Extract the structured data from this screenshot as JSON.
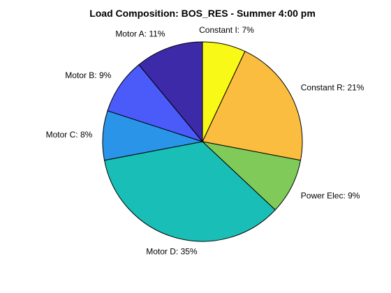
{
  "chart_data": {
    "type": "pie",
    "title": "Load Composition: BOS_RES - Summer 4:00 pm",
    "slices": [
      {
        "name": "Constant I",
        "value": 7,
        "label": "Constant I: 7%",
        "color": "#f9f918"
      },
      {
        "name": "Constant R",
        "value": 21,
        "label": "Constant R: 21%",
        "color": "#fbbd3f"
      },
      {
        "name": "Power Elec",
        "value": 9,
        "label": "Power Elec: 9%",
        "color": "#7fca59"
      },
      {
        "name": "Motor D",
        "value": 35,
        "label": "Motor D: 35%",
        "color": "#19bfb6"
      },
      {
        "name": "Motor C",
        "value": 8,
        "label": "Motor C: 8%",
        "color": "#2a95e8"
      },
      {
        "name": "Motor B",
        "value": 9,
        "label": "Motor B: 9%",
        "color": "#4a5bfa"
      },
      {
        "name": "Motor A",
        "value": 11,
        "label": "Motor A: 11%",
        "color": "#3c2aa8"
      }
    ],
    "start": "top",
    "direction": "clockwise",
    "legend": "none"
  }
}
